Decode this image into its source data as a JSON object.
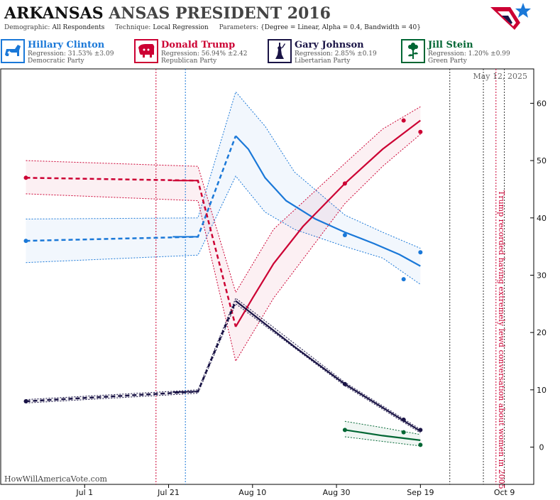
{
  "header": {
    "title_state": "ARKANSAS",
    "title_rest": "ANSAS PRESIDENT 2016",
    "demographic_label": "Demographic:",
    "demographic_value": "All Respondents",
    "technique_label": "Technique:",
    "technique_value": "Local Regression",
    "parameters_label": "Parameters:",
    "parameters_value": "{Degree = Linear, Alpha = 0.4, Bandwidth = 40}"
  },
  "candidates": [
    {
      "name": "Hillary Clinton",
      "regression": "Regression: 31.53% ±3.09",
      "party": "Democratic Party",
      "color": "#1a78d8",
      "icon": "donkey-icon"
    },
    {
      "name": "Donald Trump",
      "regression": "Regression: 56.94% ±2.42",
      "party": "Republican Party",
      "color": "#cc0033",
      "icon": "elephant-icon"
    },
    {
      "name": "Gary Johnson",
      "regression": "Regression: 2.85% ±0.19",
      "party": "Libertarian Party",
      "color": "#1a1446",
      "icon": "liberty-icon"
    },
    {
      "name": "Jill Stein",
      "regression": "Regression: 1.20% ±0.99",
      "party": "Green Party",
      "color": "#006633",
      "icon": "flower-icon"
    }
  ],
  "chart_data": {
    "type": "line",
    "date_label": "May 12, 2025",
    "watermark": "HowWillAmericaVote.com",
    "x_ticks": [
      "Jul 1",
      "Jul 21",
      "Aug 10",
      "Aug 30",
      "Sep 19",
      "Oct 9"
    ],
    "y_ticks": [
      0,
      10,
      20,
      30,
      40,
      50,
      60
    ],
    "y_range": [
      -6.5,
      66
    ],
    "x_range": [
      "2016-06-11",
      "2016-10-16"
    ],
    "annotation": "Trump recorded having extremely lewd conversation about women in 2005",
    "event_dates": [
      {
        "date": "2016-07-18",
        "color": "#cc0033"
      },
      {
        "date": "2016-07-25",
        "color": "#1a78d8"
      },
      {
        "date": "2016-09-26",
        "color": "#333333"
      },
      {
        "date": "2016-10-04",
        "color": "#333333"
      },
      {
        "date": "2016-10-07",
        "color": "#cc0033"
      },
      {
        "date": "2016-10-09",
        "color": "#333333"
      }
    ],
    "series": [
      {
        "name": "Hillary Clinton",
        "color": "#1a78d8",
        "dashed": [
          [
            "2016-06-17",
            36.0
          ],
          [
            "2016-07-28",
            36.7
          ],
          [
            "2016-08-06",
            54.3
          ]
        ],
        "solid": [
          [
            "2016-07-22",
            36.7
          ],
          [
            "2016-07-28",
            36.7
          ]
        ],
        "trend": [
          [
            "2016-08-06",
            54.3
          ],
          [
            "2016-08-09",
            52.0
          ],
          [
            "2016-08-13",
            47.0
          ],
          [
            "2016-08-18",
            43.0
          ],
          [
            "2016-08-25",
            39.8
          ],
          [
            "2016-09-01",
            37.5
          ],
          [
            "2016-09-08",
            35.5
          ],
          [
            "2016-09-14",
            33.6
          ],
          [
            "2016-09-19",
            31.6
          ]
        ],
        "band_upper": [
          [
            "2016-06-17",
            39.8
          ],
          [
            "2016-07-28",
            40.0
          ],
          [
            "2016-08-06",
            62.0
          ],
          [
            "2016-08-13",
            56.0
          ],
          [
            "2016-08-20",
            48.0
          ],
          [
            "2016-09-01",
            40.5
          ],
          [
            "2016-09-10",
            37.5
          ],
          [
            "2016-09-19",
            34.7
          ]
        ],
        "band_lower": [
          [
            "2016-06-17",
            32.2
          ],
          [
            "2016-07-28",
            33.5
          ],
          [
            "2016-08-06",
            47.3
          ],
          [
            "2016-08-13",
            41.0
          ],
          [
            "2016-08-20",
            38.0
          ],
          [
            "2016-09-01",
            35.0
          ],
          [
            "2016-09-10",
            33.0
          ],
          [
            "2016-09-19",
            28.4
          ]
        ],
        "points": [
          [
            "2016-06-17",
            36.0
          ],
          [
            "2016-09-01",
            37.0
          ],
          [
            "2016-09-15",
            29.3
          ],
          [
            "2016-09-19",
            34.0
          ]
        ]
      },
      {
        "name": "Donald Trump",
        "color": "#cc0033",
        "dashed": [
          [
            "2016-06-17",
            47.0
          ],
          [
            "2016-07-28",
            46.5
          ],
          [
            "2016-08-06",
            21.0
          ]
        ],
        "solid": [
          [
            "2016-07-22",
            46.5
          ],
          [
            "2016-07-28",
            46.5
          ]
        ],
        "trend": [
          [
            "2016-08-06",
            21.0
          ],
          [
            "2016-08-10",
            26.0
          ],
          [
            "2016-08-15",
            32.0
          ],
          [
            "2016-08-22",
            38.5
          ],
          [
            "2016-09-01",
            46.0
          ],
          [
            "2016-09-10",
            52.0
          ],
          [
            "2016-09-19",
            57.0
          ]
        ],
        "band_upper": [
          [
            "2016-06-17",
            50.0
          ],
          [
            "2016-07-28",
            49.0
          ],
          [
            "2016-08-06",
            27.0
          ],
          [
            "2016-08-15",
            38.0
          ],
          [
            "2016-09-01",
            49.5
          ],
          [
            "2016-09-10",
            55.5
          ],
          [
            "2016-09-19",
            59.4
          ]
        ],
        "band_lower": [
          [
            "2016-06-17",
            44.2
          ],
          [
            "2016-07-28",
            43.0
          ],
          [
            "2016-08-06",
            15.0
          ],
          [
            "2016-08-15",
            26.0
          ],
          [
            "2016-09-01",
            42.5
          ],
          [
            "2016-09-10",
            49.0
          ],
          [
            "2016-09-19",
            54.6
          ]
        ],
        "points": [
          [
            "2016-06-17",
            47.0
          ],
          [
            "2016-09-01",
            46.0
          ],
          [
            "2016-09-15",
            57.0
          ],
          [
            "2016-09-19",
            55.0
          ]
        ]
      },
      {
        "name": "Gary Johnson",
        "color": "#1a1446",
        "dashed": [
          [
            "2016-06-17",
            8.0
          ],
          [
            "2016-07-28",
            9.7
          ],
          [
            "2016-08-06",
            25.5
          ]
        ],
        "solid": [
          [
            "2016-07-22",
            9.6
          ],
          [
            "2016-07-28",
            9.7
          ]
        ],
        "trend": [
          [
            "2016-08-06",
            25.5
          ],
          [
            "2016-08-20",
            17.5
          ],
          [
            "2016-09-01",
            11.0
          ],
          [
            "2016-09-19",
            2.8
          ]
        ],
        "band_upper": [
          [
            "2016-06-17",
            8.3
          ],
          [
            "2016-07-28",
            10.0
          ],
          [
            "2016-08-06",
            26.0
          ],
          [
            "2016-09-01",
            11.3
          ],
          [
            "2016-09-19",
            3.1
          ]
        ],
        "band_lower": [
          [
            "2016-06-17",
            7.7
          ],
          [
            "2016-07-28",
            9.4
          ],
          [
            "2016-08-06",
            25.0
          ],
          [
            "2016-09-01",
            10.7
          ],
          [
            "2016-09-19",
            2.5
          ]
        ],
        "points": [
          [
            "2016-06-17",
            8.0
          ],
          [
            "2016-09-01",
            11.0
          ],
          [
            "2016-09-15",
            4.8
          ],
          [
            "2016-09-19",
            3.0
          ]
        ]
      },
      {
        "name": "Jill Stein",
        "color": "#006633",
        "dashed": [],
        "solid": [],
        "trend": [
          [
            "2016-09-01",
            3.0
          ],
          [
            "2016-09-10",
            2.0
          ],
          [
            "2016-09-19",
            1.2
          ]
        ],
        "band_upper": [
          [
            "2016-09-01",
            4.5
          ],
          [
            "2016-09-10",
            3.4
          ],
          [
            "2016-09-19",
            2.2
          ]
        ],
        "band_lower": [
          [
            "2016-09-01",
            1.8
          ],
          [
            "2016-09-10",
            1.0
          ],
          [
            "2016-09-19",
            0.2
          ]
        ],
        "points": [
          [
            "2016-09-01",
            3.0
          ],
          [
            "2016-09-15",
            2.6
          ],
          [
            "2016-09-19",
            0.4
          ]
        ]
      }
    ]
  }
}
